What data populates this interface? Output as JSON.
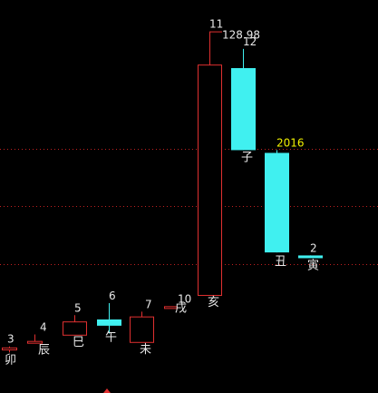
{
  "chart_data": {
    "type": "candlestick",
    "colors": {
      "background": "#000000",
      "up": "#e03030",
      "down": "#40f0f0",
      "label": "#e8e8e8",
      "highlight": "#f0f000",
      "grid": "#c02020"
    },
    "grid": "dotted",
    "gridlines": [
      82,
      59,
      36
    ],
    "max_price_label": "128.98",
    "highlight_label": "2016",
    "ylim": [
      0,
      135
    ],
    "candles": [
      {
        "num": "3",
        "branch": "卯",
        "open": 1.8,
        "close": 2.6,
        "high": 3.0,
        "low": 0.6
      },
      {
        "num": "4",
        "branch": "辰",
        "open": 4.5,
        "close": 5.2,
        "high": 7.8,
        "low": 4.5
      },
      {
        "num": "5",
        "branch": "巳",
        "open": 7.7,
        "close": 13.0,
        "high": 15.5,
        "low": 7.7
      },
      {
        "num": "6",
        "branch": "午",
        "open": 13.8,
        "close": 11.3,
        "high": 20.3,
        "low": 8.1
      },
      {
        "num": "7",
        "branch": "未",
        "open": 4.8,
        "close": 15.0,
        "high": 16.9,
        "low": 4.8
      },
      {
        "num": "10",
        "branch": "戌",
        "open": 19.1,
        "close": 19.1,
        "high": 19.1,
        "low": 19.1
      },
      {
        "num": "11",
        "branch": "亥",
        "open": 23.6,
        "close": 115.7,
        "high": 128.98,
        "low": 23.6
      },
      {
        "num": "12",
        "branch": "子",
        "open": 114.3,
        "close": 81.5,
        "high": 122.0,
        "low": 81.5
      },
      {
        "num": "2016",
        "branch": "丑",
        "open": 80.4,
        "close": 40.6,
        "high": 81.5,
        "low": 40.6
      },
      {
        "num": "2",
        "branch": "寅",
        "open": 39.4,
        "close": 38.3,
        "high": 39.4,
        "low": 38.3
      }
    ]
  }
}
